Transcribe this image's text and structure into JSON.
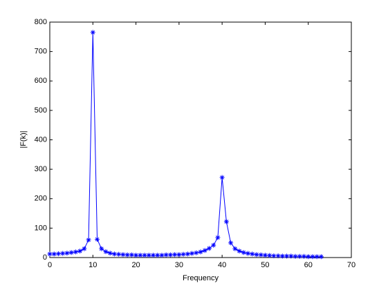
{
  "chart_data": {
    "type": "line",
    "xlabel": "Frequency",
    "ylabel": "|F(k)|",
    "x": [
      0,
      1,
      2,
      3,
      4,
      5,
      6,
      7,
      8,
      9,
      10,
      11,
      12,
      13,
      14,
      15,
      16,
      17,
      18,
      19,
      20,
      21,
      22,
      23,
      24,
      25,
      26,
      27,
      28,
      29,
      30,
      31,
      32,
      33,
      34,
      35,
      36,
      37,
      38,
      39,
      40,
      41,
      42,
      43,
      44,
      45,
      46,
      47,
      48,
      49,
      50,
      51,
      52,
      53,
      54,
      55,
      56,
      57,
      58,
      59,
      60,
      61,
      62,
      63
    ],
    "series": [
      {
        "name": "|F(k)|",
        "color": "#0000ff",
        "marker": "asterisk",
        "values": [
          12,
          12,
          13,
          14,
          15,
          17,
          19,
          22,
          30,
          60,
          765,
          62,
          30,
          20,
          15,
          12,
          11,
          10,
          9,
          9,
          8,
          8,
          8,
          8,
          8,
          8,
          8,
          9,
          9,
          10,
          10,
          11,
          12,
          14,
          16,
          19,
          24,
          31,
          42,
          68,
          272,
          122,
          50,
          30,
          22,
          17,
          14,
          12,
          10,
          9,
          8,
          7,
          6,
          6,
          5,
          5,
          5,
          4,
          4,
          4,
          3,
          3,
          3,
          3
        ]
      }
    ],
    "xlim": [
      0,
      70
    ],
    "xticks": [
      0,
      10,
      20,
      30,
      40,
      50,
      60,
      70
    ],
    "ylim": [
      0,
      800
    ],
    "yticks": [
      0,
      100,
      200,
      300,
      400,
      500,
      600,
      700,
      800
    ],
    "grid": false
  }
}
